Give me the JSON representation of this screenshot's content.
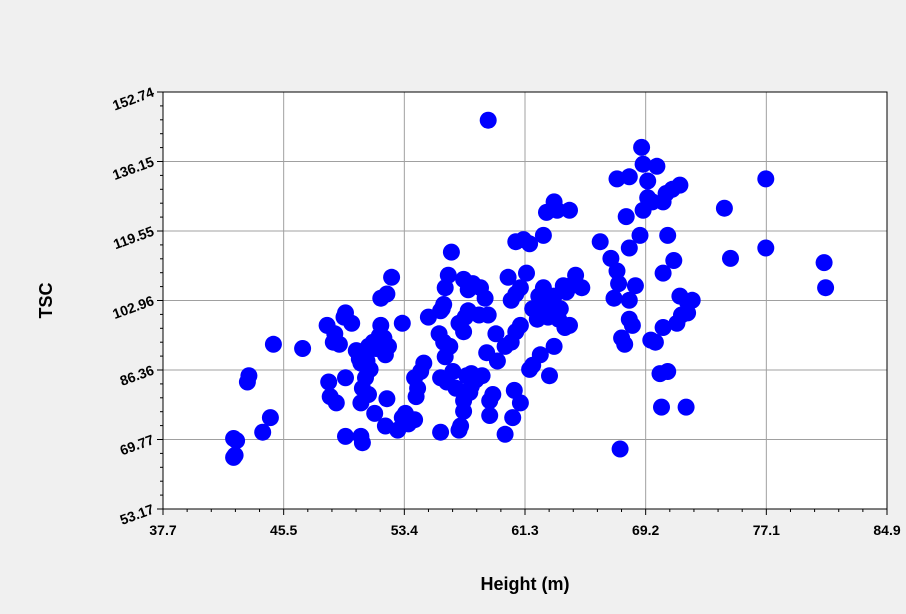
{
  "chart_data": {
    "type": "scatter",
    "title": "",
    "xlabel": "Height (m)",
    "ylabel": "TSC",
    "xlim": [
      37.7,
      84.9
    ],
    "ylim": [
      53.17,
      152.74
    ],
    "x_ticks": [
      "37.7",
      "45.5",
      "53.4",
      "61.3",
      "69.2",
      "77.1",
      "84.9"
    ],
    "y_ticks": [
      "53.17",
      "69.77",
      "86.36",
      "102.96",
      "119.55",
      "136.15",
      "152.74"
    ],
    "grid": true,
    "marker_color": "#0000ff",
    "points": [
      [
        42.3,
        65.5
      ],
      [
        42.4,
        66.0
      ],
      [
        42.3,
        70.0
      ],
      [
        42.5,
        69.5
      ],
      [
        43.2,
        83.5
      ],
      [
        43.3,
        85.0
      ],
      [
        44.2,
        71.5
      ],
      [
        44.7,
        75.0
      ],
      [
        44.9,
        92.5
      ],
      [
        46.8,
        91.5
      ],
      [
        48.4,
        97.0
      ],
      [
        48.9,
        95.0
      ],
      [
        48.8,
        93.0
      ],
      [
        49.2,
        92.5
      ],
      [
        48.5,
        83.5
      ],
      [
        48.6,
        80.0
      ],
      [
        49.0,
        78.5
      ],
      [
        49.6,
        84.5
      ],
      [
        49.5,
        99.0
      ],
      [
        49.6,
        100.0
      ],
      [
        50.0,
        97.5
      ],
      [
        50.3,
        91.0
      ],
      [
        50.5,
        89.0
      ],
      [
        50.6,
        88.0
      ],
      [
        50.9,
        90.5
      ],
      [
        51.0,
        88.5
      ],
      [
        51.2,
        86.5
      ],
      [
        50.9,
        84.5
      ],
      [
        50.7,
        82.0
      ],
      [
        51.1,
        80.5
      ],
      [
        50.6,
        78.5
      ],
      [
        51.5,
        76.0
      ],
      [
        51.1,
        92.0
      ],
      [
        51.4,
        93.0
      ],
      [
        51.6,
        91.5
      ],
      [
        51.8,
        94.5
      ],
      [
        51.9,
        97.0
      ],
      [
        52.1,
        94.0
      ],
      [
        52.2,
        90.0
      ],
      [
        52.4,
        92.0
      ],
      [
        51.9,
        103.5
      ],
      [
        52.3,
        104.5
      ],
      [
        52.6,
        108.5
      ],
      [
        53.3,
        97.5
      ],
      [
        52.3,
        79.5
      ],
      [
        52.2,
        73.0
      ],
      [
        53.3,
        75.0
      ],
      [
        53.7,
        73.5
      ],
      [
        53.5,
        76.0
      ],
      [
        49.6,
        70.5
      ],
      [
        50.6,
        70.5
      ],
      [
        50.7,
        69.0
      ],
      [
        53.0,
        72.0
      ],
      [
        54.1,
        74.5
      ],
      [
        54.2,
        80.0
      ],
      [
        54.3,
        82.0
      ],
      [
        54.1,
        84.5
      ],
      [
        54.5,
        86.0
      ],
      [
        54.7,
        88.0
      ],
      [
        55.0,
        99.0
      ],
      [
        55.9,
        101.0
      ],
      [
        55.7,
        95.0
      ],
      [
        56.0,
        93.0
      ],
      [
        56.4,
        92.0
      ],
      [
        56.1,
        89.5
      ],
      [
        56.6,
        86.0
      ],
      [
        55.8,
        84.5
      ],
      [
        56.2,
        83.5
      ],
      [
        56.8,
        82.0
      ],
      [
        55.8,
        71.5
      ],
      [
        57.0,
        72.0
      ],
      [
        57.1,
        73.0
      ],
      [
        57.7,
        81.0
      ],
      [
        57.3,
        79.0
      ],
      [
        57.3,
        76.5
      ],
      [
        57.8,
        82.5
      ],
      [
        58.1,
        84.0
      ],
      [
        57.5,
        85.0
      ],
      [
        57.8,
        85.5
      ],
      [
        58.5,
        85.0
      ],
      [
        58.8,
        90.5
      ],
      [
        59.5,
        88.5
      ],
      [
        59.2,
        80.5
      ],
      [
        59.0,
        75.5
      ],
      [
        59.0,
        79.0
      ],
      [
        60.5,
        75.0
      ],
      [
        60.0,
        71.0
      ],
      [
        61.0,
        78.5
      ],
      [
        60.6,
        81.5
      ],
      [
        57.3,
        95.5
      ],
      [
        57.0,
        97.5
      ],
      [
        57.4,
        99.0
      ],
      [
        57.6,
        100.5
      ],
      [
        58.3,
        99.5
      ],
      [
        55.8,
        100.5
      ],
      [
        56.0,
        102.0
      ],
      [
        56.1,
        106.0
      ],
      [
        56.3,
        109.0
      ],
      [
        56.5,
        114.5
      ],
      [
        57.3,
        108.0
      ],
      [
        57.6,
        105.5
      ],
      [
        57.9,
        107.0
      ],
      [
        58.4,
        106.0
      ],
      [
        58.7,
        103.5
      ],
      [
        58.9,
        99.5
      ],
      [
        59.4,
        95.0
      ],
      [
        60.0,
        92.0
      ],
      [
        60.4,
        93.0
      ],
      [
        60.7,
        95.5
      ],
      [
        61.0,
        97.0
      ],
      [
        60.4,
        103.0
      ],
      [
        60.7,
        104.5
      ],
      [
        60.2,
        108.5
      ],
      [
        61.0,
        106.0
      ],
      [
        61.4,
        109.5
      ],
      [
        61.2,
        117.5
      ],
      [
        60.7,
        117.0
      ],
      [
        61.6,
        116.5
      ],
      [
        62.5,
        118.5
      ],
      [
        62.2,
        104.0
      ],
      [
        62.5,
        102.5
      ],
      [
        62.8,
        101.5
      ],
      [
        63.2,
        100.0
      ],
      [
        63.5,
        98.5
      ],
      [
        63.9,
        96.5
      ],
      [
        64.2,
        97.0
      ],
      [
        62.3,
        100.5
      ],
      [
        61.8,
        101.0
      ],
      [
        62.1,
        98.5
      ],
      [
        62.3,
        90.0
      ],
      [
        61.8,
        87.5
      ],
      [
        61.6,
        86.5
      ],
      [
        62.9,
        85.0
      ],
      [
        62.8,
        99.0
      ],
      [
        63.2,
        92.0
      ],
      [
        63.6,
        101.0
      ],
      [
        64.3,
        106.5
      ],
      [
        64.6,
        109.0
      ],
      [
        64.0,
        105.0
      ],
      [
        62.5,
        106.0
      ],
      [
        63.2,
        104.0
      ],
      [
        63.8,
        106.5
      ],
      [
        65.0,
        106.0
      ],
      [
        62.7,
        124.0
      ],
      [
        63.4,
        124.5
      ],
      [
        63.2,
        126.5
      ],
      [
        64.2,
        124.5
      ],
      [
        58.9,
        146.0
      ],
      [
        66.2,
        117.0
      ],
      [
        66.9,
        113.0
      ],
      [
        67.3,
        110.0
      ],
      [
        67.4,
        107.0
      ],
      [
        67.1,
        103.5
      ],
      [
        68.1,
        103.0
      ],
      [
        68.5,
        106.5
      ],
      [
        68.1,
        115.5
      ],
      [
        68.8,
        118.5
      ],
      [
        69.0,
        124.5
      ],
      [
        69.3,
        127.5
      ],
      [
        69.6,
        126.5
      ],
      [
        70.3,
        126.5
      ],
      [
        70.5,
        128.5
      ],
      [
        70.9,
        129.5
      ],
      [
        70.6,
        118.5
      ],
      [
        71.0,
        112.5
      ],
      [
        70.3,
        109.5
      ],
      [
        71.4,
        104.0
      ],
      [
        71.9,
        102.5
      ],
      [
        72.2,
        103.0
      ],
      [
        71.2,
        97.5
      ],
      [
        71.5,
        99.5
      ],
      [
        71.9,
        100.0
      ],
      [
        68.1,
        98.5
      ],
      [
        67.6,
        94.0
      ],
      [
        67.8,
        92.5
      ],
      [
        68.3,
        97.0
      ],
      [
        69.5,
        93.5
      ],
      [
        70.3,
        96.5
      ],
      [
        69.8,
        93.0
      ],
      [
        70.1,
        85.5
      ],
      [
        70.6,
        86.0
      ],
      [
        70.2,
        77.5
      ],
      [
        71.8,
        77.5
      ],
      [
        67.5,
        67.5
      ],
      [
        67.9,
        123.0
      ],
      [
        67.3,
        132.0
      ],
      [
        68.1,
        132.5
      ],
      [
        68.9,
        139.5
      ],
      [
        69.0,
        135.5
      ],
      [
        69.3,
        131.5
      ],
      [
        71.4,
        130.5
      ],
      [
        69.9,
        135.0
      ],
      [
        77.0,
        132.0
      ],
      [
        77.0,
        115.5
      ],
      [
        80.8,
        112.0
      ],
      [
        80.9,
        106.0
      ],
      [
        74.7,
        113.0
      ],
      [
        74.3,
        125.0
      ]
    ]
  }
}
